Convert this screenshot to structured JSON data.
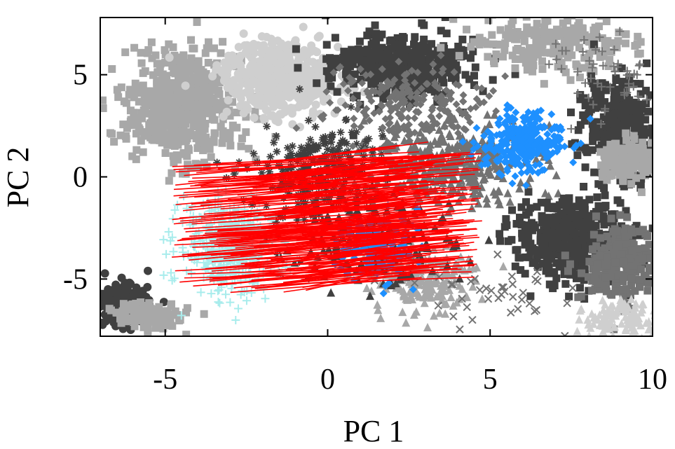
{
  "chart_data": {
    "type": "scatter",
    "title": "",
    "xlabel": "PC 1",
    "ylabel": "PC 2",
    "xlim": [
      -7,
      10
    ],
    "ylim": [
      -7.8,
      7.8
    ],
    "x_ticks": [
      -5,
      0,
      5,
      10
    ],
    "y_ticks": [
      5,
      0,
      -5
    ],
    "x_tick_labels": [
      "-5",
      "0",
      "5",
      "10"
    ],
    "y_tick_labels": [
      "5",
      "0",
      "-5"
    ],
    "grid": false,
    "legend": "none",
    "colors": {
      "dark_gray": "#404040",
      "mid_gray": "#737373",
      "light_gray": "#a8a8a8",
      "pale_gray": "#cfcfcf",
      "cyan": "#a8ecec",
      "blue": "#1e90ff",
      "red": "#ff0000",
      "axis": "#000000"
    },
    "clusters": [
      {
        "shape": "square",
        "color": "light_gray",
        "center": [
          -4.5,
          3.5
        ],
        "spread": [
          1.5,
          2.3
        ],
        "count": 650
      },
      {
        "shape": "circle",
        "color": "pale_gray",
        "center": [
          -1.5,
          4.8
        ],
        "spread": [
          1.6,
          1.6
        ],
        "count": 550
      },
      {
        "shape": "square",
        "color": "dark_gray",
        "center": [
          2.2,
          5.5
        ],
        "spread": [
          2.0,
          1.5
        ],
        "count": 420
      },
      {
        "shape": "square",
        "color": "light_gray",
        "center": [
          7.0,
          6.5
        ],
        "spread": [
          2.2,
          1.2
        ],
        "count": 220
      },
      {
        "shape": "triangle",
        "color": "mid_gray",
        "center": [
          3.5,
          0.5
        ],
        "spread": [
          2.8,
          2.0
        ],
        "count": 350
      },
      {
        "shape": "asterisk",
        "color": "dark_gray",
        "center": [
          -0.5,
          0.2
        ],
        "spread": [
          1.8,
          2.3
        ],
        "count": 260
      },
      {
        "shape": "diamond",
        "color": "mid_gray",
        "center": [
          2.5,
          3.5
        ],
        "spread": [
          2.2,
          1.8
        ],
        "count": 220
      },
      {
        "shape": "square",
        "color": "dark_gray",
        "center": [
          7.5,
          -3.0
        ],
        "spread": [
          1.6,
          1.8
        ],
        "count": 420
      },
      {
        "shape": "square",
        "color": "dark_gray",
        "center": [
          9.0,
          2.5
        ],
        "spread": [
          1.1,
          2.4
        ],
        "count": 300
      },
      {
        "shape": "square",
        "color": "light_gray",
        "center": [
          9.2,
          0.8
        ],
        "spread": [
          0.9,
          0.9
        ],
        "count": 160
      },
      {
        "shape": "square",
        "color": "mid_gray",
        "center": [
          9.0,
          -4.0
        ],
        "spread": [
          1.0,
          1.8
        ],
        "count": 220
      },
      {
        "shape": "triangle",
        "color": "pale_gray",
        "center": [
          9.0,
          -7.0
        ],
        "spread": [
          1.0,
          0.8
        ],
        "count": 120
      },
      {
        "shape": "circle",
        "color": "dark_gray",
        "center": [
          -6.3,
          -6.2
        ],
        "spread": [
          0.7,
          0.9
        ],
        "count": 200
      },
      {
        "shape": "square",
        "color": "light_gray",
        "center": [
          -5.5,
          -6.8
        ],
        "spread": [
          0.9,
          0.6
        ],
        "count": 130
      },
      {
        "shape": "triangle",
        "color": "light_gray",
        "center": [
          3.0,
          -5.0
        ],
        "spread": [
          1.5,
          1.4
        ],
        "count": 180
      },
      {
        "shape": "triangle",
        "color": "dark_gray",
        "center": [
          1.5,
          -3.0
        ],
        "spread": [
          2.0,
          2.0
        ],
        "count": 180
      },
      {
        "shape": "plus",
        "color": "mid_gray",
        "center": [
          8.5,
          5.0
        ],
        "spread": [
          1.5,
          2.0
        ],
        "count": 50
      },
      {
        "shape": "cross",
        "color": "mid_gray",
        "center": [
          5.0,
          -5.5
        ],
        "spread": [
          2.5,
          1.5
        ],
        "count": 40
      },
      {
        "shape": "plus",
        "color": "cyan",
        "center": [
          -3.0,
          -3.5
        ],
        "spread": [
          1.4,
          2.0
        ],
        "count": 450
      },
      {
        "shape": "diamond",
        "color": "blue",
        "center": [
          6.0,
          1.6
        ],
        "spread": [
          1.2,
          1.3
        ],
        "count": 300
      },
      {
        "shape": "diamond",
        "color": "blue",
        "center": [
          1.5,
          -3.5
        ],
        "spread": [
          1.1,
          1.5
        ],
        "count": 130
      }
    ],
    "arrows": {
      "color": "red",
      "count": 200,
      "start_x_range": [
        -4.8,
        -0.5
      ],
      "start_y_range": [
        -5.6,
        0.6
      ],
      "end_x_range": [
        2.0,
        4.8
      ],
      "end_y_range": [
        -4.8,
        1.4
      ]
    }
  }
}
